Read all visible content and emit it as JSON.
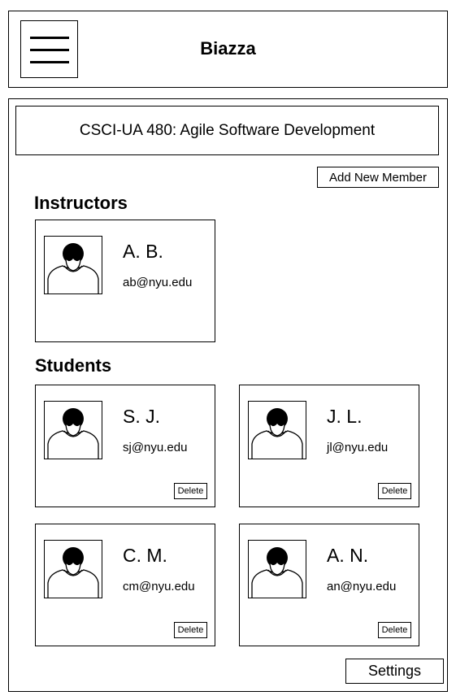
{
  "header": {
    "title": "Biazza",
    "menu_icon": "hamburger-menu-icon"
  },
  "course": {
    "title": "CSCI-UA 480: Agile Software Development"
  },
  "actions": {
    "add_member_label": "Add New Member",
    "settings_label": "Settings"
  },
  "instructors": {
    "heading": "Instructors",
    "members": [
      {
        "initials": "A. B.",
        "email": "ab@nyu.edu",
        "avatar_icon": "user-avatar-icon"
      }
    ]
  },
  "students": {
    "heading": "Students",
    "delete_label": "Delete",
    "members": [
      {
        "initials": "S. J.",
        "email": "sj@nyu.edu",
        "avatar_icon": "user-avatar-icon"
      },
      {
        "initials": "J. L.",
        "email": "jl@nyu.edu",
        "avatar_icon": "user-avatar-icon"
      },
      {
        "initials": "C. M.",
        "email": "cm@nyu.edu",
        "avatar_icon": "user-avatar-icon"
      },
      {
        "initials": "A. N.",
        "email": "an@nyu.edu",
        "avatar_icon": "user-avatar-icon"
      }
    ]
  }
}
